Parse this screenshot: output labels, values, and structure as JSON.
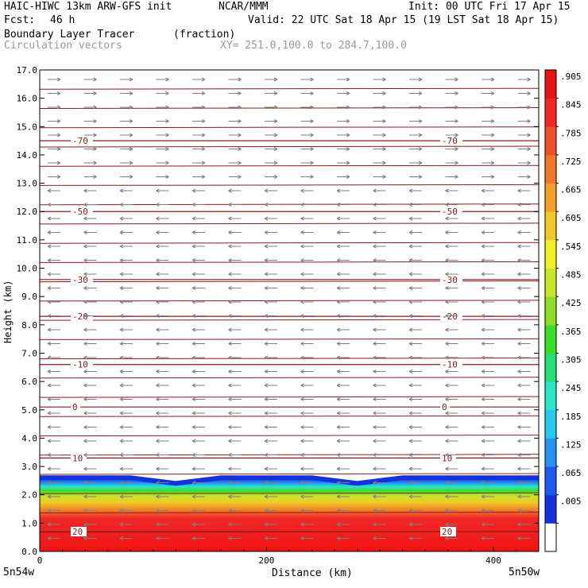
{
  "header": {
    "model_title": "HAIC-HIWC 13km ARW-GFS init",
    "org": "NCAR/MMM",
    "init": "Init: 00 UTC Fri 17 Apr 15",
    "fcst_label": "Fcst:",
    "fcst_value": "46 h",
    "valid": "Valid: 22 UTC Sat 18 Apr 15 (19 LST Sat 18 Apr 15)",
    "field_name": "Boundary Layer Tracer",
    "field_units": "(fraction)",
    "overlay_name": "Circulation vectors",
    "xy_range": "XY= 251.0,100.0 to 284.7,100.0"
  },
  "chart_data": {
    "type": "heatmap",
    "xlabel": "Distance (km)",
    "ylabel": "Height (km)",
    "xlim": [
      0,
      440
    ],
    "ylim": [
      0.0,
      17.0
    ],
    "x_ticks": [
      "0",
      "200",
      "400"
    ],
    "x_tick_values": [
      0,
      200,
      400
    ],
    "x_end_labels": [
      "5n54w",
      "5n50w"
    ],
    "y_ticks": [
      "0.0",
      "1.0",
      "2.0",
      "3.0",
      "4.0",
      "5.0",
      "6.0",
      "7.0",
      "8.0",
      "9.0",
      "10.0",
      "11.0",
      "12.0",
      "13.0",
      "14.0",
      "15.0",
      "16.0",
      "17.0"
    ],
    "y_tick_values": [
      0,
      1,
      2,
      3,
      4,
      5,
      6,
      7,
      8,
      9,
      10,
      11,
      12,
      13,
      14,
      15,
      16,
      17
    ],
    "colorbar": {
      "labels": [
        ".005",
        ".065",
        ".125",
        ".185",
        ".245",
        ".305",
        ".365",
        ".425",
        ".485",
        ".545",
        ".605",
        ".665",
        ".725",
        ".785",
        ".845",
        ".905"
      ],
      "colors": [
        "#ffffff",
        "#1432dc",
        "#1e5af0",
        "#2890f0",
        "#28c8f0",
        "#28e6c8",
        "#28dc78",
        "#3cdc28",
        "#8cdc28",
        "#c8e628",
        "#f0f028",
        "#f0c828",
        "#f0a028",
        "#f07828",
        "#f05028",
        "#f02828",
        "#e61414"
      ]
    },
    "tracer_boundary_height_km": [
      2.6,
      2.6,
      2.6,
      2.4,
      2.6,
      2.6,
      2.6,
      2.4,
      2.6,
      2.6,
      2.6,
      2.6
    ],
    "temperature_contours": [
      {
        "label": "-70",
        "height_km": 14.5
      },
      {
        "label": "-50",
        "height_km": 12.0
      },
      {
        "label": "-30",
        "height_km": 9.6
      },
      {
        "label": "-20",
        "height_km": 8.3
      },
      {
        "label": "-10",
        "height_km": 6.6
      },
      {
        "label": "0",
        "height_km": 5.1
      },
      {
        "label": "10",
        "height_km": 3.3
      },
      {
        "label": "20",
        "height_km": 0.7
      }
    ]
  }
}
